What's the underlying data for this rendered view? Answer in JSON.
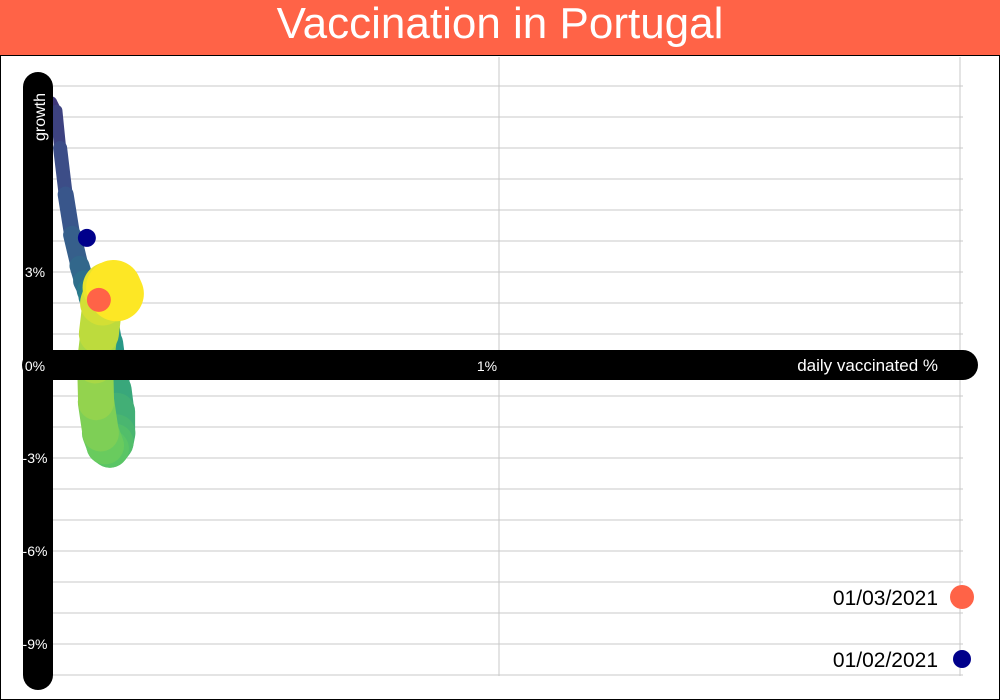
{
  "colors": {
    "title_bg": "#ff6347",
    "title_text": "#ffffff",
    "axis_bar": "#000000",
    "grid": "#c8c8c8",
    "marker_mar": "#ff6347",
    "marker_feb": "#00008b",
    "viridis": [
      "#440154",
      "#3b528b",
      "#21918c",
      "#5ec962",
      "#fde725"
    ]
  },
  "chart_data": {
    "type": "line",
    "title": "Vaccination in Portugal",
    "xlabel": "daily vaccinated %",
    "ylabel": "growth",
    "xlim": [
      -0.046,
      1.0
    ],
    "ylim": [
      -10,
      10
    ],
    "x_ticks": [
      {
        "value": 0,
        "label": "0%"
      },
      {
        "value": 0.5,
        "label": "1%"
      }
    ],
    "y_ticks": [
      {
        "value": 3,
        "label": "3%"
      },
      {
        "value": 0,
        "label": "0%"
      },
      {
        "value": -3,
        "label": "-3%"
      },
      {
        "value": -6,
        "label": "-6%"
      },
      {
        "value": -9,
        "label": "-9%"
      }
    ],
    "grid": true,
    "legend_position": "bottom-right",
    "series": {
      "x": [
        0.0,
        0.0,
        0.002,
        0.005,
        0.01,
        0.015,
        0.02,
        0.024,
        0.03,
        0.037,
        0.045,
        0.05,
        0.055,
        0.058,
        0.063,
        0.07,
        0.075,
        0.078,
        0.082,
        0.085,
        0.085,
        0.083,
        0.078,
        0.073,
        0.068,
        0.063,
        0.062,
        0.066,
        0.07,
        0.076,
        0.082,
        0.085
      ],
      "y": [
        -3.2,
        -1.5,
        2.0,
        5.0,
        7.5,
        8.5,
        8.2,
        7.0,
        5.5,
        4.2,
        3.2,
        2.7,
        2.4,
        2.2,
        2.0,
        1.6,
        0.7,
        0.0,
        -0.8,
        -1.5,
        -2.2,
        -2.5,
        -2.7,
        -2.6,
        -2.2,
        -1.2,
        0.0,
        1.0,
        2.0,
        2.5,
        2.5,
        2.3
      ],
      "width": [
        3,
        4,
        5,
        6,
        7,
        9,
        11,
        13,
        15,
        17,
        19,
        21,
        23,
        25,
        27,
        29,
        31,
        33,
        35,
        37,
        38,
        38,
        38,
        38,
        37,
        36,
        36,
        38,
        42,
        48,
        54,
        56
      ]
    },
    "markers": [
      {
        "label": "01/03/2021",
        "x": 0.066,
        "y": 2.1,
        "color_key": "marker_mar",
        "size": "large"
      },
      {
        "label": "01/02/2021",
        "x": 0.053,
        "y": 4.1,
        "color_key": "marker_feb",
        "size": "small"
      }
    ]
  }
}
